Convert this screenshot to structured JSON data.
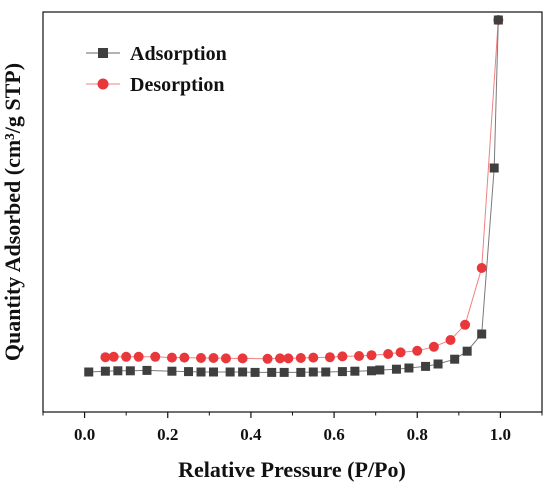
{
  "chart_data": {
    "type": "scatter",
    "title": "",
    "xlabel": "Relative Pressure (P/Po)",
    "ylabel": "Quantity Adsorbed (cm³/g STP)",
    "xlim": [
      -0.1,
      1.1
    ],
    "ylim": [
      0,
      100
    ],
    "xticks": [
      "0.0",
      "0.2",
      "0.4",
      "0.6",
      "0.8",
      "1.0"
    ],
    "yticks_visible": false,
    "grid": false,
    "legend": "top-left",
    "series": [
      {
        "name": "Adsorption",
        "marker": "square",
        "color": "#3f3f3f",
        "x": [
          0.01,
          0.05,
          0.08,
          0.11,
          0.15,
          0.21,
          0.25,
          0.28,
          0.31,
          0.35,
          0.38,
          0.41,
          0.45,
          0.48,
          0.52,
          0.55,
          0.58,
          0.62,
          0.65,
          0.69,
          0.71,
          0.75,
          0.78,
          0.82,
          0.85,
          0.89,
          0.92,
          0.955,
          0.985,
          0.995
        ],
        "y": [
          10.0,
          10.2,
          10.3,
          10.3,
          10.4,
          10.2,
          10.1,
          10.0,
          10.0,
          10.0,
          10.0,
          9.9,
          9.9,
          9.9,
          9.9,
          10.0,
          10.0,
          10.1,
          10.2,
          10.3,
          10.5,
          10.7,
          11.0,
          11.4,
          12.0,
          13.2,
          15.2,
          19.5,
          61.0,
          98.0
        ]
      },
      {
        "name": "Desorption",
        "marker": "circle",
        "color": "#e8383b",
        "x": [
          0.05,
          0.07,
          0.1,
          0.13,
          0.17,
          0.21,
          0.24,
          0.28,
          0.31,
          0.34,
          0.38,
          0.44,
          0.47,
          0.49,
          0.52,
          0.55,
          0.59,
          0.62,
          0.66,
          0.69,
          0.73,
          0.76,
          0.8,
          0.84,
          0.88,
          0.915,
          0.955,
          0.995
        ],
        "y": [
          13.7,
          13.8,
          13.8,
          13.8,
          13.8,
          13.6,
          13.6,
          13.5,
          13.5,
          13.4,
          13.4,
          13.3,
          13.4,
          13.4,
          13.5,
          13.6,
          13.7,
          13.9,
          14.0,
          14.2,
          14.5,
          14.9,
          15.3,
          16.3,
          18.0,
          21.8,
          36.0,
          98.0
        ]
      }
    ]
  }
}
